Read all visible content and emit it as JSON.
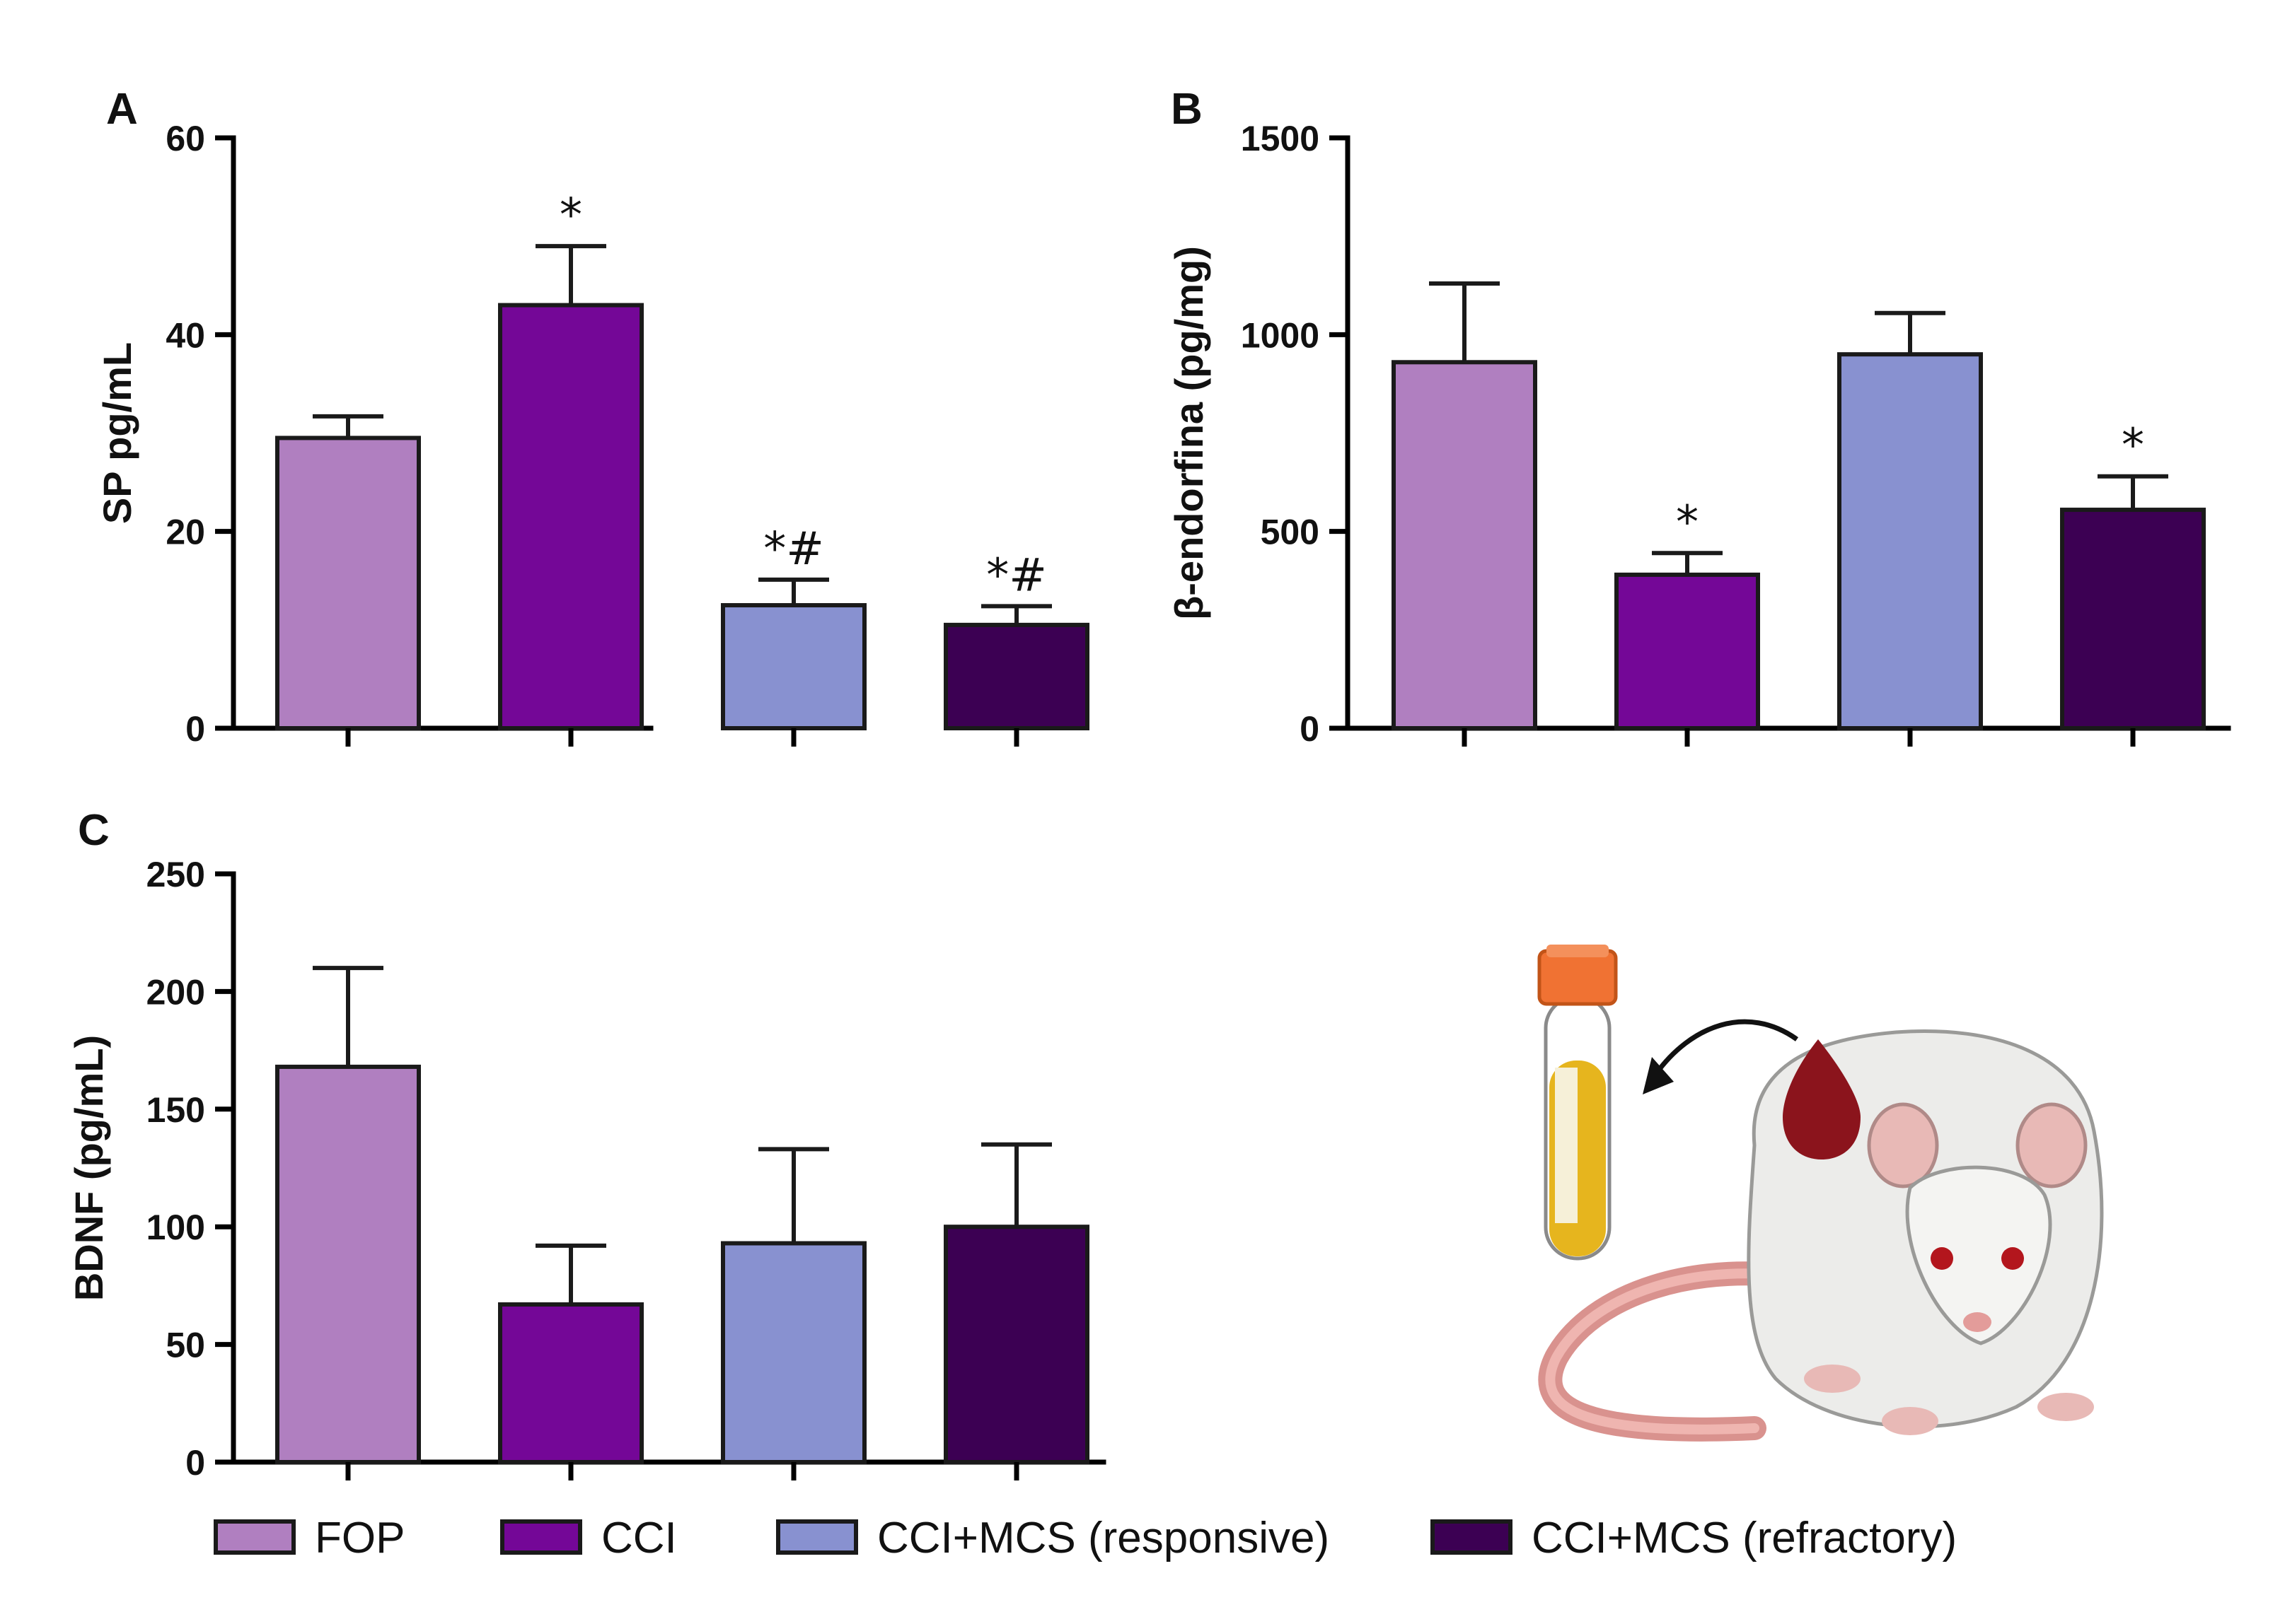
{
  "colors": {
    "FOP": "#b07fc0",
    "CCI": "#740797",
    "CCI+MCS (responsive)": "#8891d0",
    "CCI+MCS (refractory)": "#3c0053"
  },
  "legend": [
    {
      "label": "FOP",
      "color": "#b07fc0"
    },
    {
      "label": "CCI",
      "color": "#740797"
    },
    {
      "label": "CCI+MCS (responsive)",
      "color": "#8891d0"
    },
    {
      "label": "CCI+MCS (refractory)",
      "color": "#3c0053"
    }
  ],
  "illustration": {
    "name": "rat-blood-sample-illustration"
  },
  "chart_data": [
    {
      "panel": "A",
      "type": "bar",
      "categories": [
        "FOP",
        "CCI",
        "CCI+MCS (responsive)",
        "CCI+MCS (refractory)"
      ],
      "values": [
        29.5,
        43,
        12.5,
        10.5
      ],
      "errors": [
        2.2,
        6,
        2.6,
        1.9
      ],
      "annotations": [
        "",
        "*",
        "*#",
        "*#"
      ],
      "ylabel": "SP pg/mL",
      "ylim": [
        0,
        60
      ],
      "yticks": [
        0,
        20,
        40,
        60
      ]
    },
    {
      "panel": "B",
      "type": "bar",
      "categories": [
        "FOP",
        "CCI",
        "CCI+MCS (responsive)",
        "CCI+MCS (refractory)"
      ],
      "values": [
        930,
        390,
        950,
        555
      ],
      "errors": [
        200,
        55,
        105,
        85
      ],
      "annotations": [
        "",
        "*",
        "",
        "*"
      ],
      "ylabel": "β-endorfina (pg/mg)",
      "ylim": [
        0,
        1500
      ],
      "yticks": [
        0,
        500,
        1000,
        1500
      ]
    },
    {
      "panel": "C",
      "type": "bar",
      "categories": [
        "FOP",
        "CCI",
        "CCI+MCS (responsive)",
        "CCI+MCS (refractory)"
      ],
      "values": [
        168,
        67,
        93,
        100
      ],
      "errors": [
        42,
        25,
        40,
        35
      ],
      "annotations": [
        "",
        "",
        "",
        ""
      ],
      "ylabel": "BDNF (pg/mL)",
      "ylim": [
        0,
        250
      ],
      "yticks": [
        0,
        50,
        100,
        150,
        200,
        250
      ]
    }
  ]
}
